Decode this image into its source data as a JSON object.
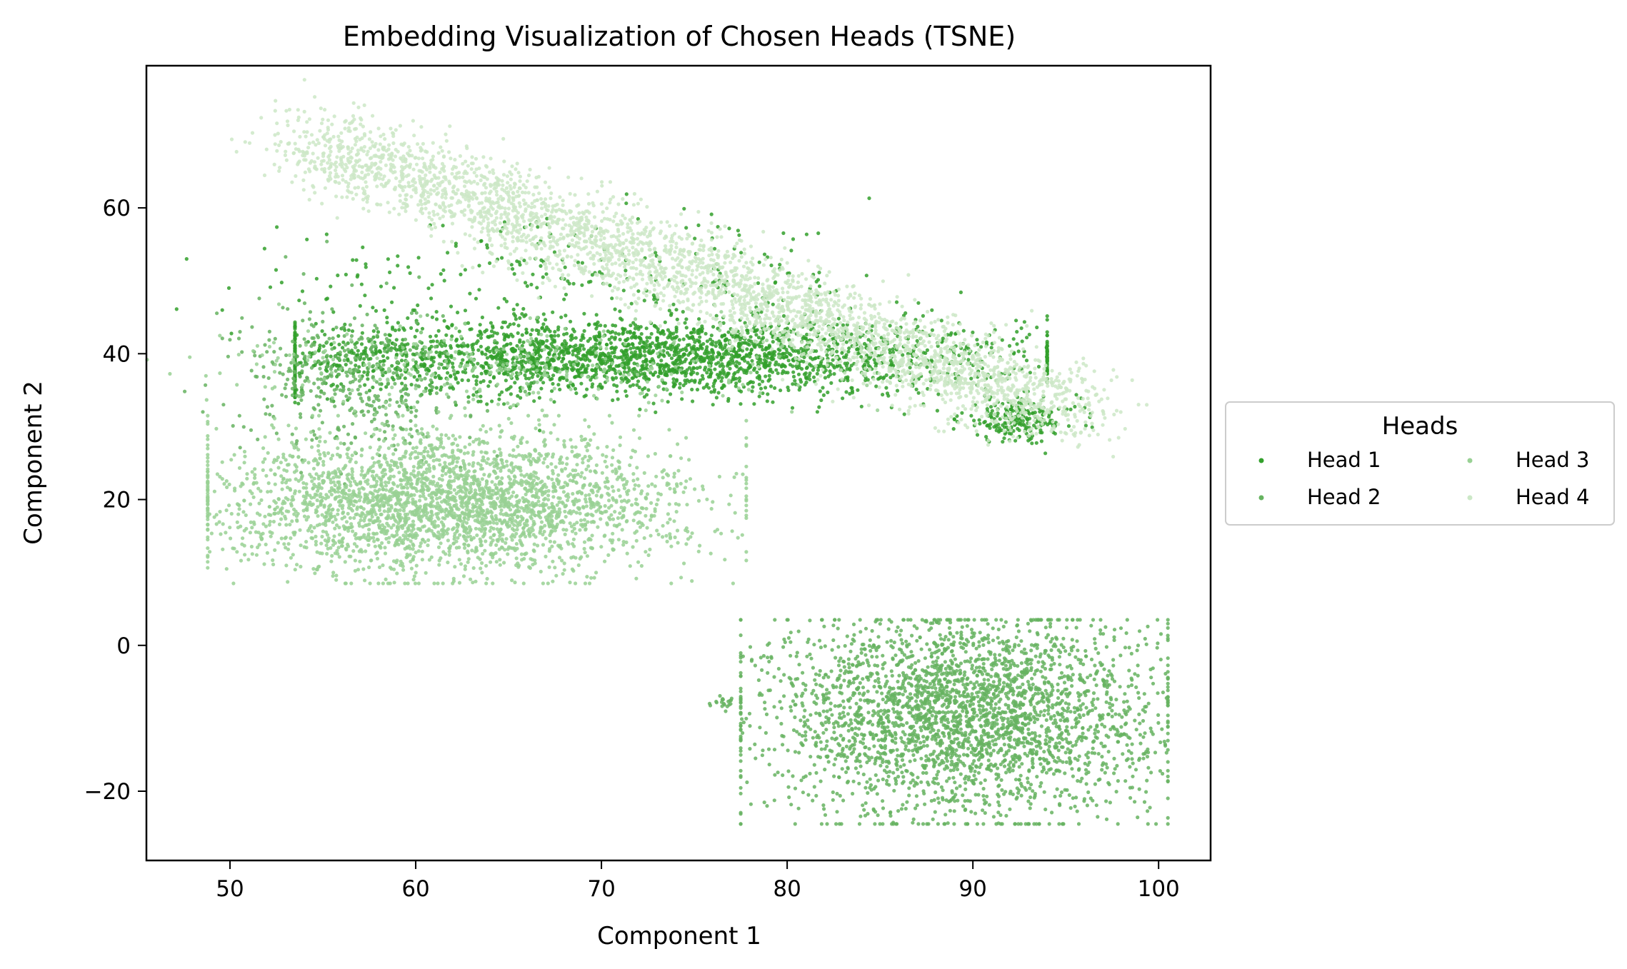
{
  "chart_data": {
    "type": "scatter",
    "title": "Embedding Visualization of Chosen Heads (TSNE)",
    "xlabel": "Component 1",
    "ylabel": "Component 2",
    "xlim": [
      45.5,
      102.8
    ],
    "ylim": [
      -29.5,
      79.5
    ],
    "xticks": [
      50,
      60,
      70,
      80,
      90,
      100
    ],
    "yticks": [
      -20,
      0,
      20,
      40,
      60
    ],
    "xtick_labels": [
      "50",
      "60",
      "70",
      "80",
      "90",
      "100"
    ],
    "ytick_labels": [
      "−20",
      "0",
      "20",
      "40",
      "60"
    ],
    "grid": false,
    "legend": {
      "title": "Heads",
      "placement": "center-right outside",
      "columns": 2
    },
    "series": [
      {
        "name": "Head 1",
        "color": "#33a02c",
        "clusters": [
          {
            "cx": 72.0,
            "cy": 39.5,
            "sx": 10.5,
            "sy": 2.6,
            "n": 2600,
            "xmin": 53.5,
            "xmax": 94.0
          },
          {
            "cx": 92.5,
            "cy": 31.0,
            "sx": 1.6,
            "sy": 1.5,
            "n": 220
          },
          {
            "cx": 68.0,
            "cy": 50.0,
            "sx": 9.0,
            "sy": 4.0,
            "n": 260
          }
        ]
      },
      {
        "name": "Head 2",
        "color": "#66b360",
        "clusters": [
          {
            "cx": 89.5,
            "cy": -9.5,
            "sx": 5.2,
            "sy": 6.8,
            "n": 3000,
            "xmin": 77.5,
            "xmax": 100.5,
            "ymin": -24.5,
            "ymax": 3.5
          },
          {
            "cx": 56.5,
            "cy": 36.5,
            "sx": 3.0,
            "sy": 5.0,
            "n": 420
          },
          {
            "cx": 76.5,
            "cy": -8.0,
            "sx": 0.4,
            "sy": 0.4,
            "n": 20
          }
        ]
      },
      {
        "name": "Head 3",
        "color": "#99d194",
        "clusters": [
          {
            "cx": 62.0,
            "cy": 19.5,
            "sx": 6.2,
            "sy": 4.6,
            "n": 3000,
            "xmin": 48.8,
            "xmax": 77.8,
            "ymin": 8.5,
            "ymax": 31.5
          },
          {
            "cx": 65.0,
            "cy": 38.0,
            "sx": 8.0,
            "sy": 3.0,
            "n": 300
          }
        ]
      },
      {
        "name": "Head 4",
        "color": "#cce8c7",
        "clusters": [
          {
            "cx": 74.0,
            "cy": 55.0,
            "sx": 11.5,
            "sy": 2.6,
            "n": 3400,
            "band": true,
            "x0": 54.0,
            "x1": 95.5,
            "y0": 69.5,
            "y1": 32.0
          }
        ]
      }
    ]
  }
}
